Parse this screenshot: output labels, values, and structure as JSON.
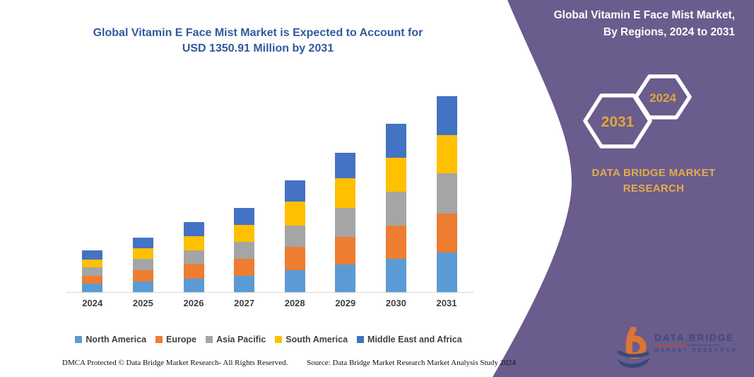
{
  "page": {
    "title_line1": "Global Vitamin E Face Mist Market is Expected to Account for",
    "title_line2": "USD 1350.91 Million by 2031"
  },
  "side_panel": {
    "heading_line1": "Global Vitamin E Face Mist Market,",
    "heading_line2": "By Regions, 2024 to 2031",
    "hex_badge_large": "2031",
    "hex_badge_small": "2024",
    "brand_line1": "DATA BRIDGE MARKET",
    "brand_line2": "RESEARCH",
    "logo_text_top": "DATA BRIDGE",
    "logo_text_bottom": "MARKET RESEARCH"
  },
  "footer": {
    "dmca": "DMCA Protected © Data Bridge Market Research-  All Rights Reserved.",
    "source": "Source: Data Bridge Market Research  Market Analysis Study 2024"
  },
  "colors": {
    "panel_purple": "#6A5C8D",
    "title_blue": "#315A9E",
    "gold_text": "#DDA63C",
    "axis_line": "#D9D9D9",
    "axis_text": "#3F3F3F"
  },
  "chart_data": {
    "type": "bar",
    "stacked": true,
    "title": "Global Vitamin E Face Mist Market is Expected to Account for USD 1350.91 Million by 2031",
    "unit": "USD Million",
    "categories": [
      "2024",
      "2025",
      "2026",
      "2027",
      "2028",
      "2029",
      "2030",
      "2031"
    ],
    "series": [
      {
        "name": "North America",
        "color": "#5B9BD5",
        "values": [
          57,
          74,
          94,
          113,
          150,
          190,
          228,
          272
        ]
      },
      {
        "name": "Europe",
        "color": "#ED7D31",
        "values": [
          57,
          77,
          100,
          118,
          162,
          192,
          231,
          268
        ]
      },
      {
        "name": "Asia Pacific",
        "color": "#A5A5A5",
        "values": [
          57,
          76,
          96,
          117,
          147,
          199,
          233,
          277
        ]
      },
      {
        "name": "South America",
        "color": "#FFC000",
        "values": [
          54,
          74,
          94,
          115,
          167,
          203,
          233,
          265
        ]
      },
      {
        "name": "Middle East and Africa",
        "color": "#4472C4",
        "values": [
          63,
          77,
          99,
          118,
          147,
          179,
          234,
          268.91
        ]
      }
    ],
    "totals_estimated": [
      288,
      378,
      483,
      581,
      773,
      963,
      1159,
      1350.91
    ],
    "ylim": [
      0,
      1400
    ],
    "grid": false,
    "y_axis_visible": false,
    "legend_position": "bottom"
  }
}
